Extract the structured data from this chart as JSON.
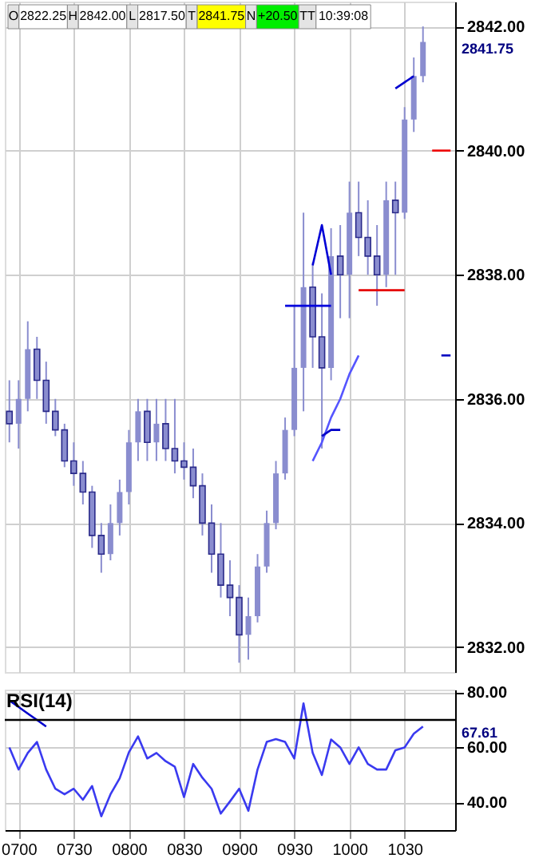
{
  "chart_data": [
    {
      "type": "candlestick",
      "color": "#8a8dcf",
      "categories": [
        null,
        "0700",
        null,
        null,
        null,
        null,
        null,
        "0730",
        null,
        null,
        null,
        null,
        null,
        "0800",
        null,
        null,
        null,
        null,
        null,
        "0830",
        null,
        null,
        null,
        null,
        null,
        "0900",
        null,
        null,
        null,
        null,
        null,
        "0930",
        null,
        null,
        null,
        null,
        null,
        "1000",
        null,
        null,
        null,
        null,
        null,
        "1030",
        null,
        null,
        null,
        null,
        null
      ],
      "ohlc": [
        [
          2835.8,
          2836.3,
          2835.3,
          2835.6
        ],
        [
          2835.6,
          2836.3,
          2835.2,
          2836.0
        ],
        [
          2836.0,
          2837.25,
          2835.8,
          2836.8
        ],
        [
          2836.8,
          2837.0,
          2836.0,
          2836.3
        ],
        [
          2836.3,
          2836.6,
          2835.6,
          2835.8
        ],
        [
          2835.8,
          2836.0,
          2835.4,
          2835.5
        ],
        [
          2835.5,
          2835.6,
          2834.9,
          2835.0
        ],
        [
          2835.0,
          2835.3,
          2834.6,
          2834.8
        ],
        [
          2834.8,
          2835.0,
          2834.3,
          2834.5
        ],
        [
          2834.5,
          2834.6,
          2833.6,
          2833.8
        ],
        [
          2833.8,
          2834.0,
          2833.2,
          2833.5
        ],
        [
          2833.5,
          2834.3,
          2833.4,
          2834.0
        ],
        [
          2834.0,
          2834.7,
          2833.8,
          2834.5
        ],
        [
          2834.5,
          2835.5,
          2834.3,
          2835.3
        ],
        [
          2835.3,
          2836.0,
          2835.0,
          2835.8
        ],
        [
          2835.8,
          2836.0,
          2835.0,
          2835.3
        ],
        [
          2835.3,
          2836.0,
          2835.0,
          2835.6
        ],
        [
          2835.6,
          2836.0,
          2835.0,
          2835.2
        ],
        [
          2835.2,
          2836.0,
          2834.8,
          2835.0
        ],
        [
          2835.0,
          2835.3,
          2834.7,
          2834.9
        ],
        [
          2834.9,
          2835.2,
          2834.4,
          2834.6
        ],
        [
          2834.6,
          2834.8,
          2833.8,
          2834.0
        ],
        [
          2834.0,
          2834.3,
          2833.2,
          2833.5
        ],
        [
          2833.5,
          2834.0,
          2832.8,
          2833.0
        ],
        [
          2833.0,
          2833.4,
          2832.5,
          2832.8
        ],
        [
          2832.8,
          2833.0,
          2831.75,
          2832.2
        ],
        [
          2832.2,
          2832.8,
          2831.8,
          2832.5
        ],
        [
          2832.5,
          2833.5,
          2832.4,
          2833.3
        ],
        [
          2833.3,
          2834.2,
          2833.2,
          2834.0
        ],
        [
          2834.0,
          2835.0,
          2833.9,
          2834.8
        ],
        [
          2834.8,
          2835.7,
          2834.7,
          2835.5
        ],
        [
          2835.5,
          2837.5,
          2835.4,
          2836.5
        ],
        [
          2836.5,
          2839.0,
          2835.8,
          2837.8
        ],
        [
          2837.8,
          2838.2,
          2836.5,
          2837.0
        ],
        [
          2837.0,
          2837.7,
          2835.2,
          2836.5
        ],
        [
          2836.5,
          2838.75,
          2836.3,
          2838.3
        ],
        [
          2838.3,
          2838.8,
          2837.3,
          2838.0
        ],
        [
          2838.0,
          2839.5,
          2837.3,
          2839.0
        ],
        [
          2839.0,
          2839.5,
          2838.3,
          2838.6
        ],
        [
          2838.6,
          2839.2,
          2838.0,
          2838.3
        ],
        [
          2838.3,
          2838.8,
          2837.5,
          2838.0
        ],
        [
          2838.0,
          2839.5,
          2837.8,
          2839.2
        ],
        [
          2839.2,
          2839.5,
          2838.0,
          2839.0
        ],
        [
          2839.0,
          2840.7,
          2838.9,
          2840.5
        ],
        [
          2840.5,
          2841.5,
          2840.3,
          2841.2
        ],
        [
          2841.2,
          2842.0,
          2841.1,
          2841.75
        ],
        null,
        null,
        null
      ],
      "series": [
        {
          "type": "line",
          "color": "#ee0000",
          "values": [
            null,
            null,
            null,
            null,
            null,
            null,
            null,
            null,
            null,
            null,
            null,
            null,
            null,
            null,
            null,
            null,
            null,
            null,
            null,
            null,
            null,
            null,
            null,
            null,
            null,
            null,
            null,
            null,
            null,
            null,
            null,
            null,
            null,
            null,
            null,
            null,
            null,
            null,
            null,
            null,
            null,
            null,
            null,
            null,
            null,
            null,
            2840.0,
            2840.0,
            2840.0
          ]
        },
        {
          "type": "line",
          "color": "#e60000",
          "values": [
            null,
            null,
            null,
            null,
            null,
            null,
            null,
            null,
            null,
            null,
            null,
            null,
            null,
            null,
            null,
            null,
            null,
            null,
            null,
            null,
            null,
            null,
            null,
            null,
            null,
            null,
            null,
            null,
            null,
            null,
            null,
            null,
            null,
            null,
            null,
            null,
            null,
            null,
            2837.75,
            2837.75,
            2837.75,
            2837.75,
            2837.75,
            2837.75,
            null,
            null,
            null,
            null,
            null
          ]
        },
        {
          "type": "line",
          "color": "#0000dd",
          "values": [
            null,
            null,
            null,
            null,
            null,
            null,
            null,
            null,
            null,
            null,
            null,
            null,
            null,
            null,
            null,
            null,
            null,
            null,
            null,
            null,
            null,
            null,
            null,
            null,
            null,
            null,
            null,
            null,
            null,
            null,
            2837.5,
            2837.5,
            2837.5,
            2837.5,
            2837.5,
            2837.5,
            null,
            null,
            null,
            null,
            null,
            null,
            null,
            null,
            null,
            null,
            null,
            null,
            null
          ]
        },
        {
          "type": "line",
          "color": "#0000d6",
          "values": [
            null,
            null,
            null,
            null,
            null,
            null,
            null,
            null,
            null,
            null,
            null,
            null,
            null,
            null,
            null,
            null,
            null,
            null,
            null,
            null,
            null,
            null,
            null,
            null,
            null,
            null,
            null,
            null,
            null,
            null,
            null,
            null,
            null,
            2838.15,
            2838.8,
            2838.0,
            null,
            null,
            null,
            null,
            null,
            null,
            null,
            null,
            null,
            null,
            null,
            null,
            null
          ]
        },
        {
          "type": "line",
          "color": "#0000cf",
          "values": [
            null,
            null,
            null,
            null,
            null,
            null,
            null,
            null,
            null,
            null,
            null,
            null,
            null,
            null,
            null,
            null,
            null,
            null,
            null,
            null,
            null,
            null,
            null,
            null,
            null,
            null,
            null,
            null,
            null,
            null,
            null,
            null,
            null,
            null,
            null,
            null,
            null,
            null,
            null,
            null,
            null,
            null,
            2841.0,
            2841.1,
            2841.2,
            null,
            null,
            null,
            null
          ]
        },
        {
          "type": "line",
          "color": "#5555ff",
          "values": [
            null,
            null,
            null,
            null,
            null,
            null,
            null,
            null,
            null,
            null,
            null,
            null,
            null,
            null,
            null,
            null,
            null,
            null,
            null,
            null,
            null,
            null,
            null,
            null,
            null,
            null,
            null,
            null,
            null,
            null,
            null,
            null,
            null,
            2835.0,
            2835.3,
            2835.7,
            2836.0,
            2836.4,
            2836.7,
            null,
            null,
            null,
            null,
            null,
            null,
            null,
            null,
            null,
            null
          ]
        },
        {
          "type": "line",
          "color": "#0000c8",
          "values": [
            null,
            null,
            null,
            null,
            null,
            null,
            null,
            null,
            null,
            null,
            null,
            null,
            null,
            null,
            null,
            null,
            null,
            null,
            null,
            null,
            null,
            null,
            null,
            null,
            null,
            null,
            null,
            null,
            null,
            null,
            null,
            null,
            null,
            null,
            2835.4,
            2835.5,
            2835.5,
            null,
            null,
            null,
            null,
            null,
            null,
            null,
            null,
            null,
            null,
            null,
            null
          ]
        },
        {
          "type": "line",
          "color": "#0000c0",
          "values": [
            null,
            null,
            null,
            null,
            null,
            null,
            null,
            null,
            null,
            null,
            null,
            null,
            null,
            null,
            null,
            null,
            null,
            null,
            null,
            null,
            null,
            null,
            null,
            null,
            null,
            null,
            null,
            null,
            null,
            null,
            null,
            null,
            null,
            null,
            null,
            null,
            null,
            null,
            null,
            null,
            null,
            null,
            null,
            null,
            null,
            null,
            null,
            2836.7,
            2836.7
          ]
        }
      ],
      "ylim": [
        2831.6,
        2842.4
      ],
      "yticks": [
        {
          "value": 2832,
          "label": "2832.00"
        },
        {
          "value": 2834,
          "label": "2834.00"
        },
        {
          "value": 2836,
          "label": "2836.00"
        },
        {
          "value": 2838,
          "label": "2838.00"
        },
        {
          "value": 2840,
          "label": "2840.00"
        },
        {
          "value": 2842,
          "label": "2842.00"
        }
      ],
      "tick_labels": "y",
      "grid": true,
      "annotations": [
        "O",
        "2822.25",
        "H",
        "2842.00",
        "L",
        "2817.50",
        "T",
        "2841.75",
        "N",
        "+20.50",
        "TT",
        "10:39:08",
        "2841.75"
      ]
    },
    {
      "type": "line",
      "title": "RSI(14)",
      "categories": [
        null,
        "0700",
        null,
        null,
        null,
        null,
        null,
        "0730",
        null,
        null,
        null,
        null,
        null,
        "0800",
        null,
        null,
        null,
        null,
        null,
        "0830",
        null,
        null,
        null,
        null,
        null,
        "0900",
        null,
        null,
        null,
        null,
        null,
        "0930",
        null,
        null,
        null,
        null,
        null,
        "1000",
        null,
        null,
        null,
        null,
        null,
        "1030",
        null,
        null,
        null,
        null,
        null
      ],
      "series": [
        {
          "color": "#3a3af0",
          "values": [
            60,
            52,
            58,
            62,
            52,
            45,
            43,
            45,
            41,
            46,
            35,
            43,
            48.8,
            58.2,
            64,
            56,
            58,
            55,
            53,
            42,
            54,
            49,
            45,
            36,
            40.4,
            45,
            37,
            52,
            62,
            63,
            62,
            56,
            76,
            58,
            50,
            62.9,
            60,
            54,
            60,
            54,
            52,
            52,
            59,
            60,
            65,
            67.61,
            null,
            null,
            null
          ]
        },
        {
          "type": "line",
          "color": "#0000cc",
          "values": [
            77,
            74.7,
            72.3,
            70,
            67.6,
            null,
            null,
            null,
            null,
            null,
            null,
            null,
            null,
            null,
            null,
            null,
            null,
            null,
            null,
            null,
            null,
            null,
            null,
            null,
            null,
            null,
            null,
            null,
            null,
            null,
            null,
            null,
            null,
            null,
            null,
            null,
            null,
            null,
            null,
            null,
            null,
            null,
            null,
            null,
            null,
            null,
            null,
            null,
            null
          ]
        }
      ],
      "ylim": [
        30,
        81
      ],
      "yticks": [
        {
          "value": 40,
          "label": "40.00"
        },
        {
          "value": 60,
          "label": "60.00"
        },
        {
          "value": 80,
          "label": "80.00"
        }
      ],
      "grid": true,
      "ref_lines": [
        {
          "axis": "y",
          "value": 70,
          "color": "#000000"
        }
      ],
      "annotations": [
        "67.61"
      ]
    }
  ]
}
